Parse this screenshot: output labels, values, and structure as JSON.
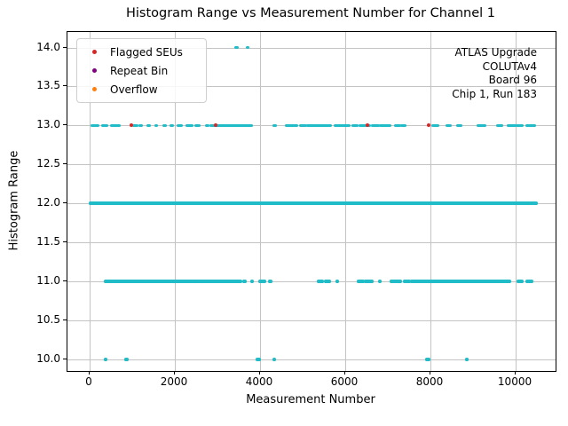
{
  "chart_data": {
    "type": "scatter",
    "title": "Histogram Range vs Measurement Number for Channel 1",
    "xlabel": "Measurement Number",
    "ylabel": "Histogram Range",
    "xlim": [
      -521,
      10937
    ],
    "ylim": [
      9.85,
      14.2
    ],
    "xticks": [
      0,
      2000,
      4000,
      6000,
      8000,
      10000
    ],
    "yticks": [
      10.0,
      10.5,
      11.0,
      11.5,
      12.0,
      12.5,
      13.0,
      13.5,
      14.0
    ],
    "grid": true,
    "point_color": "#20bcc7",
    "legend": {
      "position": "upper-left",
      "entries": [
        {
          "label": "Flagged SEUs",
          "color": "#d62728"
        },
        {
          "label": "Repeat Bin",
          "color": "#800080"
        },
        {
          "label": "Overflow",
          "color": "#ff7f0e"
        }
      ]
    },
    "annotation": {
      "align": "right",
      "lines": [
        "ATLAS Upgrade",
        "COLUTAv4",
        "Board 96",
        "Chip 1, Run 183"
      ]
    },
    "series": [
      {
        "name": "histogram-range-measurements",
        "color": "#20bcc7",
        "levels": [
          {
            "y": 14,
            "segments": [
              [
                3440,
                3465
              ],
              [
                3695,
                3720
              ]
            ]
          },
          {
            "y": 13,
            "segments": [
              [
                50,
                200
              ],
              [
                300,
                390
              ],
              [
                520,
                690
              ],
              [
                1030,
                1110
              ],
              [
                1190,
                1215
              ],
              [
                1380,
                1405
              ],
              [
                1550,
                1575
              ],
              [
                1740,
                1765
              ],
              [
                1920,
                1945
              ],
              [
                2080,
                2150
              ],
              [
                2290,
                2400
              ],
              [
                2500,
                2570
              ],
              [
                2740,
                2765
              ],
              [
                2850,
                2960
              ],
              [
                2980,
                3800
              ],
              [
                4330,
                4355
              ],
              [
                4620,
                4860
              ],
              [
                4960,
                5060
              ],
              [
                5120,
                5450
              ],
              [
                5480,
                5660
              ],
              [
                5770,
                6080
              ],
              [
                6180,
                6280
              ],
              [
                6350,
                6420
              ],
              [
                6440,
                6560
              ],
              [
                6650,
                6780
              ],
              [
                6830,
                7050
              ],
              [
                7190,
                7270
              ],
              [
                7330,
                7400
              ],
              [
                8060,
                8170
              ],
              [
                8400,
                8470
              ],
              [
                8640,
                8710
              ],
              [
                9120,
                9270
              ],
              [
                9580,
                9680
              ],
              [
                9830,
                9980
              ],
              [
                10040,
                10140
              ],
              [
                10270,
                10450
              ]
            ]
          },
          {
            "y": 12,
            "segments": [
              [
                20,
                10480
              ]
            ]
          },
          {
            "y": 11,
            "segments": [
              [
                375,
                1290
              ],
              [
                1330,
                2540
              ],
              [
                2580,
                3540
              ],
              [
                3630,
                3655
              ],
              [
                3800,
                3825
              ],
              [
                4000,
                4100
              ],
              [
                4220,
                4245
              ],
              [
                5370,
                5460
              ],
              [
                5540,
                5630
              ],
              [
                5800,
                5825
              ],
              [
                6310,
                6420
              ],
              [
                6480,
                6630
              ],
              [
                6800,
                6825
              ],
              [
                7080,
                7290
              ],
              [
                7400,
                7500
              ],
              [
                7560,
                9850
              ],
              [
                10060,
                10160
              ],
              [
                10270,
                10380
              ]
            ]
          },
          {
            "y": 10,
            "segments": [
              [
                375,
                380
              ],
              [
                840,
                875
              ],
              [
                3940,
                3985
              ],
              [
                4325,
                4330
              ],
              [
                7910,
                7960
              ],
              [
                8850,
                8855
              ]
            ]
          }
        ]
      },
      {
        "name": "Flagged SEUs",
        "color": "#d62728",
        "points": [
          [
            980,
            13
          ],
          [
            2960,
            13
          ],
          [
            6520,
            13
          ],
          [
            7960,
            13
          ]
        ]
      },
      {
        "name": "Repeat Bin",
        "color": "#800080",
        "points": []
      },
      {
        "name": "Overflow",
        "color": "#ff7f0e",
        "points": []
      }
    ]
  }
}
